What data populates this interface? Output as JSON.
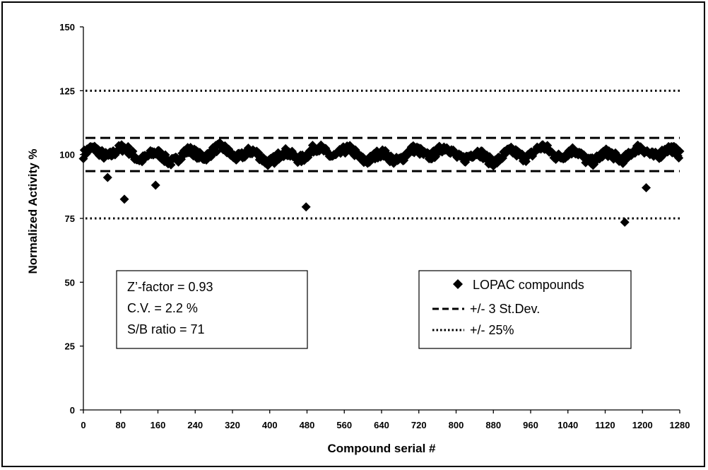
{
  "chart_data": {
    "type": "scatter",
    "xlabel": "Compound serial #",
    "ylabel": "Normalized Activity %",
    "xlim": [
      0,
      1280
    ],
    "ylim": [
      0,
      150
    ],
    "x_ticks": [
      "0",
      "80",
      "160",
      "240",
      "320",
      "400",
      "480",
      "560",
      "640",
      "720",
      "800",
      "880",
      "960",
      "1040",
      "1120",
      "1200",
      "1280"
    ],
    "y_ticks": [
      "0",
      "25",
      "50",
      "75",
      "100",
      "125",
      "150"
    ],
    "grid": false,
    "series": [
      {
        "name": "LOPAC compounds",
        "marker": "diamond",
        "color": "#000000",
        "baseline_mean": 100,
        "x_range": [
          0,
          1280
        ],
        "outliers": [
          {
            "x": 52,
            "y": 91
          },
          {
            "x": 88,
            "y": 82.5
          },
          {
            "x": 155,
            "y": 88
          },
          {
            "x": 478,
            "y": 79.5
          },
          {
            "x": 1162,
            "y": 73.5
          },
          {
            "x": 1208,
            "y": 87
          }
        ]
      }
    ],
    "reference_lines": [
      {
        "name": "+/- 3 St.Dev.",
        "style": "dashed",
        "values": [
          106.5,
          93.5
        ]
      },
      {
        "name": "+/- 25%",
        "style": "dotted",
        "values": [
          125,
          75
        ]
      }
    ],
    "stats_box": {
      "lines": [
        "Z’-factor  = 0.93",
        "C.V. = 2.2 %",
        "S/B ratio = 71"
      ]
    },
    "legend": {
      "placement": "lower-right",
      "entries": [
        "LOPAC compounds",
        "+/- 3 St.Dev.",
        "+/- 25%"
      ]
    }
  }
}
